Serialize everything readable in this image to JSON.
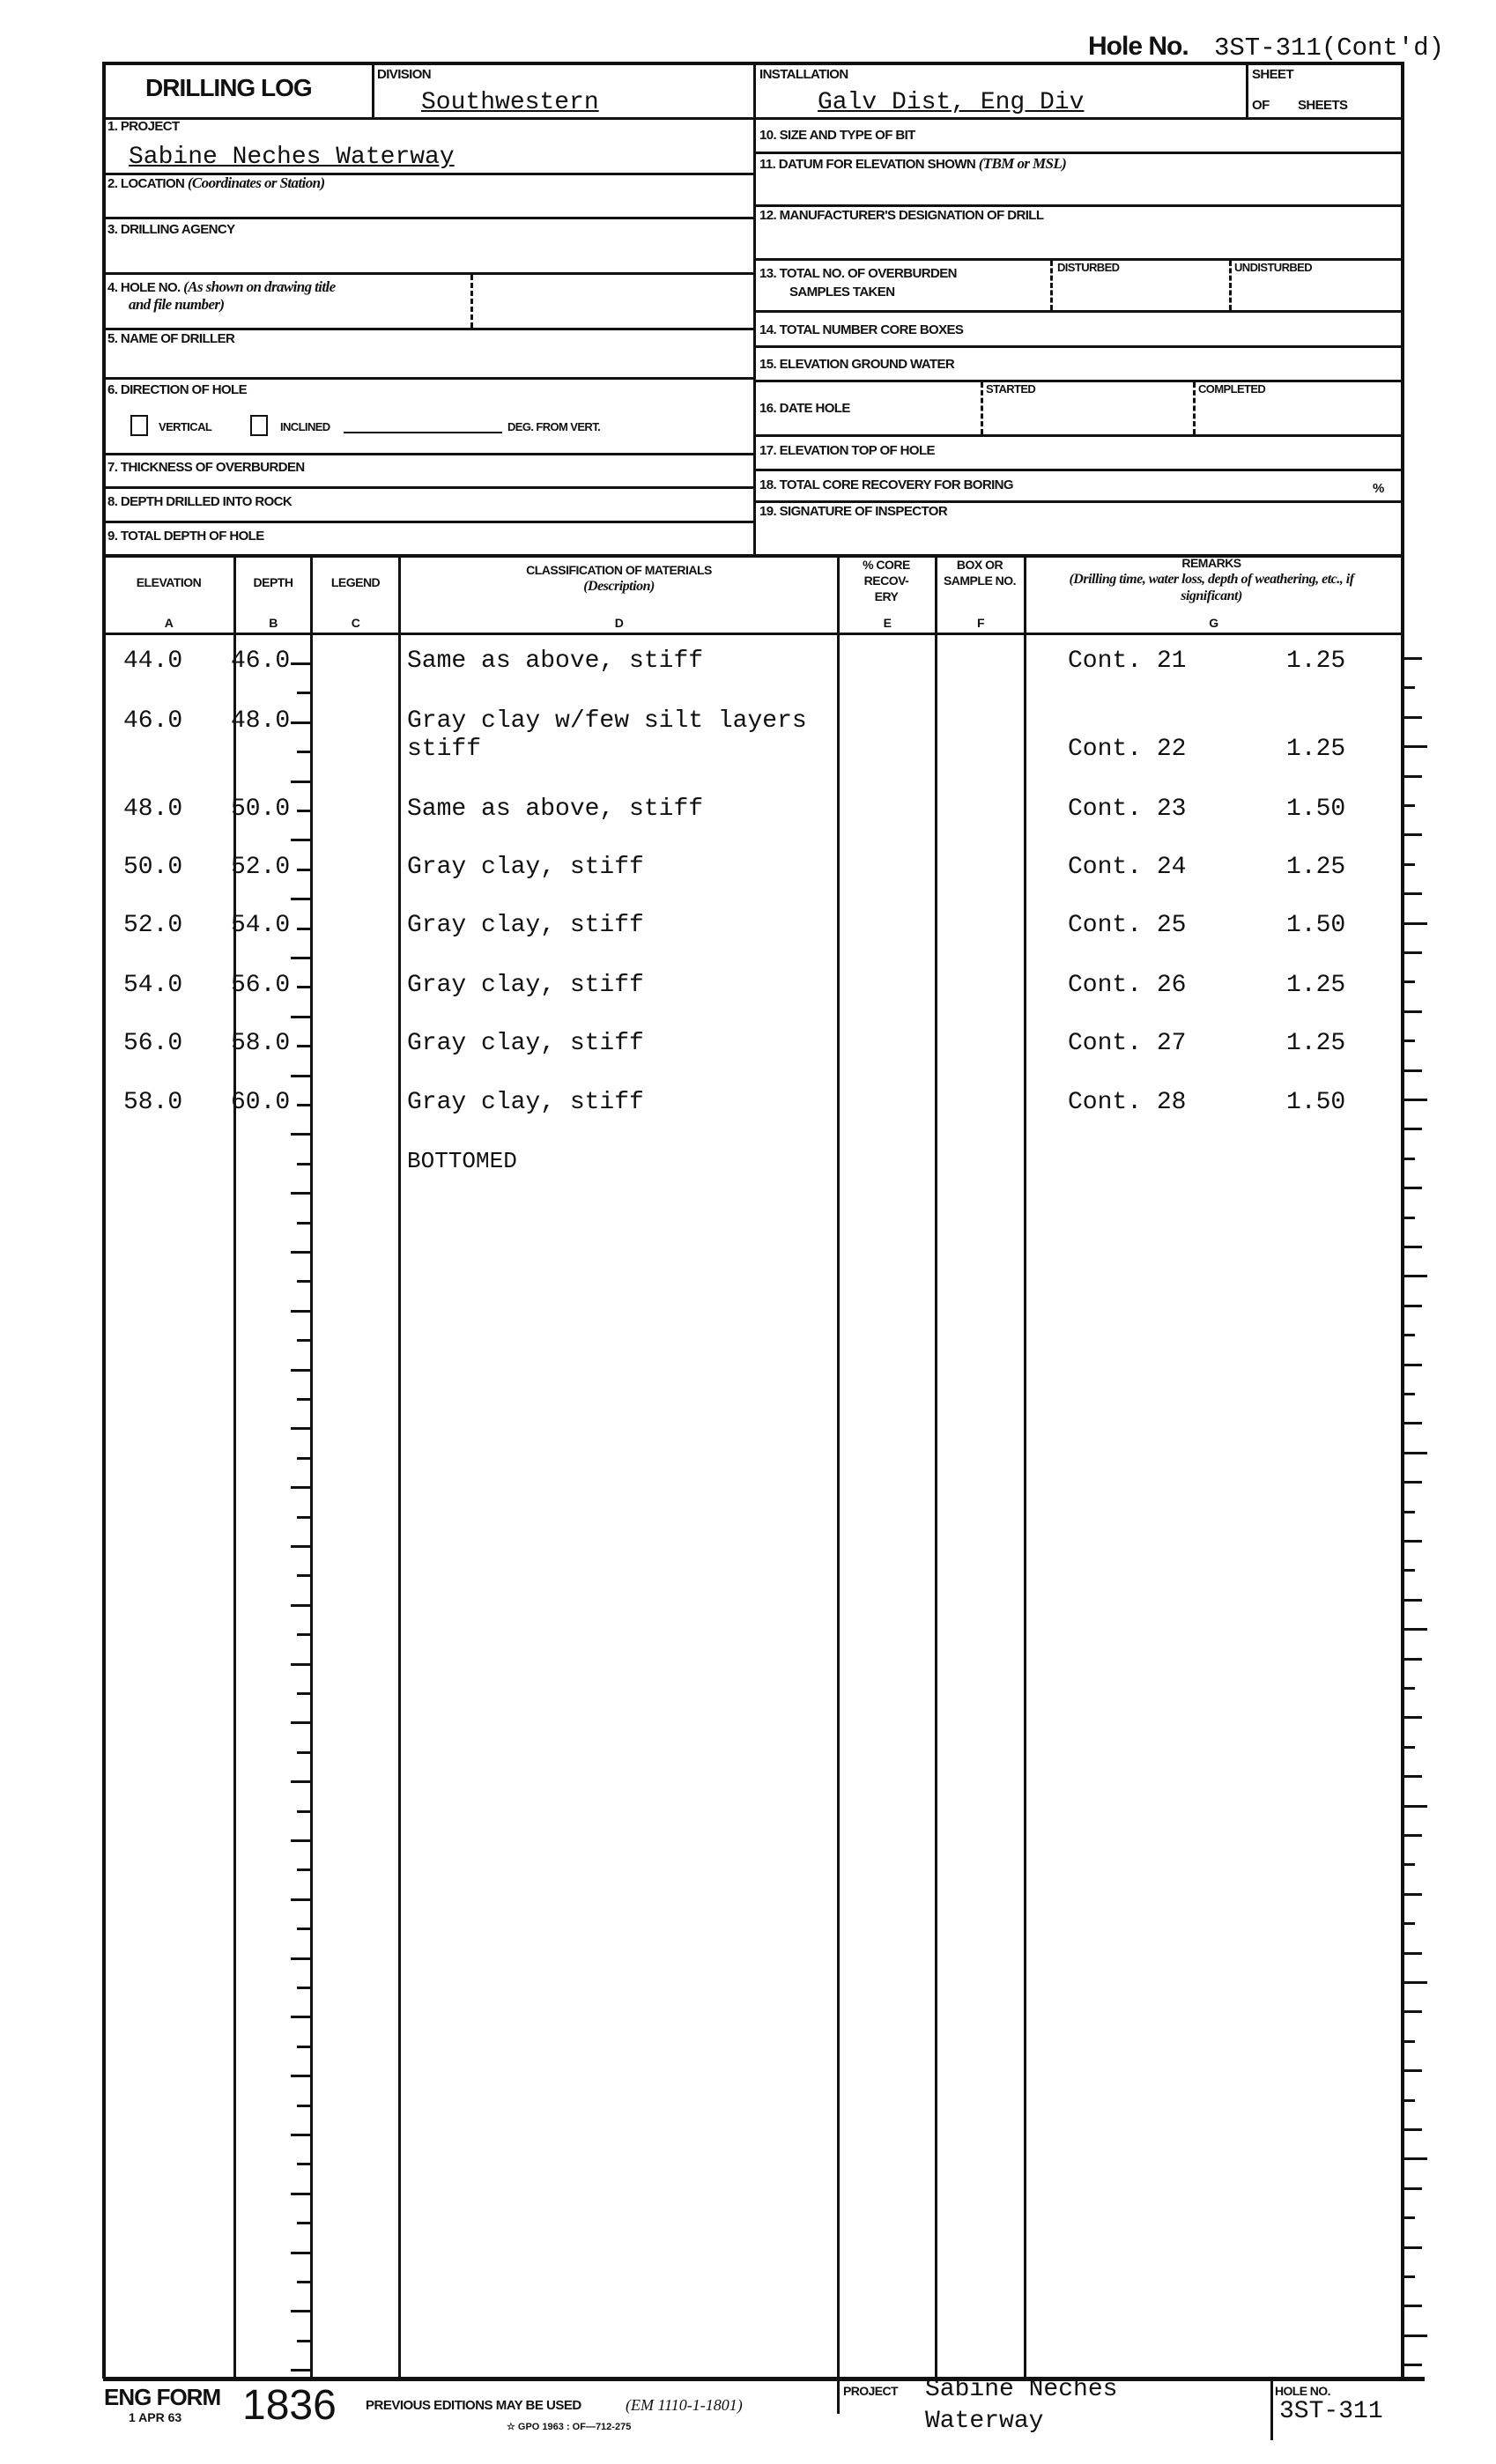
{
  "hole_no": {
    "label": "Hole No.",
    "value": "3ST-311(Cont'd)"
  },
  "header": {
    "title": "DRILLING LOG",
    "division_label": "DIVISION",
    "division": "Southwestern",
    "installation_label": "INSTALLATION",
    "installation": "Galv Dist, Eng Div",
    "sheet_label": "SHEET",
    "of_label": "OF",
    "sheets_label": "SHEETS"
  },
  "left_fields": {
    "project_label": "1. PROJECT",
    "project": "Sabine Neches Waterway",
    "location_label": "2. LOCATION",
    "location_note": "(Coordinates or Station)",
    "agency_label": "3. DRILLING AGENCY",
    "hole_label": "4. HOLE NO.",
    "hole_note1": "(As shown on drawing title",
    "hole_note2": "and file number)",
    "driller_label": "5. NAME OF DRILLER",
    "direction_label": "6. DIRECTION OF HOLE",
    "vertical": "VERTICAL",
    "inclined": "INCLINED",
    "deg": "DEG. FROM VERT.",
    "thickness_label": "7. THICKNESS OF OVERBURDEN",
    "rock_label": "8. DEPTH DRILLED INTO ROCK",
    "total_depth_label": "9. TOTAL DEPTH OF HOLE"
  },
  "right_fields": {
    "bit_label": "10. SIZE AND TYPE OF BIT",
    "datum_label": "11. DATUM FOR ELEVATION SHOWN",
    "datum_note": "(TBM or MSL)",
    "drill_label": "12. MANUFACTURER'S DESIGNATION OF DRILL",
    "samples_label1": "13. TOTAL NO. OF OVERBURDEN",
    "samples_label2": "SAMPLES TAKEN",
    "disturbed": "DISTURBED",
    "undisturbed": "UNDISTURBED",
    "core_boxes_label": "14. TOTAL NUMBER CORE BOXES",
    "ground_water_label": "15. ELEVATION GROUND WATER",
    "date_label": "16. DATE HOLE",
    "started": "STARTED",
    "completed": "COMPLETED",
    "top_label": "17. ELEVATION TOP OF HOLE",
    "recovery_label": "18. TOTAL CORE RECOVERY FOR BORING",
    "percent": "%",
    "inspector_label": "19. SIGNATURE OF INSPECTOR"
  },
  "columns": [
    {
      "title": "ELEVATION",
      "letter": "a"
    },
    {
      "title": "DEPTH",
      "letter": "b"
    },
    {
      "title": "LEGEND",
      "letter": "c"
    },
    {
      "title": "CLASSIFICATION OF MATERIALS",
      "note": "(Description)",
      "letter": "d"
    },
    {
      "title": "% CORE RECOV- ERY",
      "letter": "e"
    },
    {
      "title": "BOX OR SAMPLE NO.",
      "letter": "f"
    },
    {
      "title": "REMARKS",
      "note": "(Drilling time, water loss, depth of weathering, etc., if significant)",
      "letter": "g"
    }
  ],
  "rows": [
    {
      "elevation": "44.0",
      "depth": "46.0",
      "description": "Same as above, stiff",
      "remark": "Cont.  21",
      "value": "1.25"
    },
    {
      "elevation": "46.0",
      "depth": "48.0",
      "description": "Gray clay w/few silt layers",
      "description2": "stiff",
      "remark": "Cont. 22",
      "value": "1.25"
    },
    {
      "elevation": "48.0",
      "depth": "50.0",
      "description": "Same as above, stiff",
      "remark": "Cont.  23",
      "value": "1.50"
    },
    {
      "elevation": "50.0",
      "depth": "52.0",
      "description": "Gray clay, stiff",
      "remark": "Cont. 24",
      "value": "1.25"
    },
    {
      "elevation": "52.0",
      "depth": "54.0",
      "description": "Gray clay, stiff",
      "remark": "Cont.  25",
      "value": "1.50"
    },
    {
      "elevation": "54.0",
      "depth": "56.0",
      "description": "Gray clay, stiff",
      "remark": "Cont. 26",
      "value": "1.25"
    },
    {
      "elevation": "56.0",
      "depth": "58.0",
      "description": "Gray clay, stiff",
      "remark": "Cont. 27",
      "value": "1.25"
    },
    {
      "elevation": "58.0",
      "depth": "60.0",
      "description": "Gray clay, stiff",
      "remark": "Cont.  28",
      "value": "1.50"
    }
  ],
  "bottomed": "BOTTOMED",
  "footer": {
    "eng_form": "ENG FORM",
    "date": "1 APR 63",
    "form_no": "1836",
    "previous": "PREVIOUS EDITIONS MAY BE USED",
    "em": "(EM 1110-1-1801)",
    "gpo": "☆ GPO 1963 : OF—712-275",
    "project_label": "PROJECT",
    "project1": "Sabine Neches",
    "project2": "Waterway",
    "hole_label": "HOLE NO.",
    "hole": "3ST-311"
  }
}
